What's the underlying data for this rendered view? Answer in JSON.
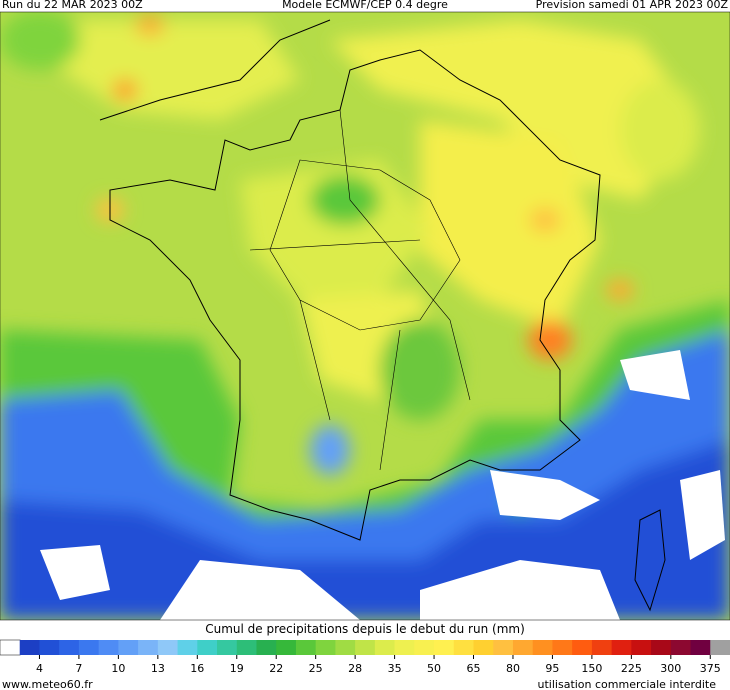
{
  "header": {
    "run": "Run du 22 MAR 2023 00Z",
    "model": "Modele ECMWF/CEP 0.4 degre",
    "forecast": "Prevision samedi 01 APR 2023 00Z"
  },
  "colorbar": {
    "title": "Cumul de precipitations depuis le debut du run (mm)",
    "labels": [
      "4",
      "7",
      "10",
      "13",
      "16",
      "19",
      "22",
      "25",
      "28",
      "35",
      "50",
      "65",
      "80",
      "95",
      "150",
      "225",
      "300",
      "375"
    ],
    "colors": [
      "#ffffff",
      "#1c3fc4",
      "#2150d6",
      "#2d64e6",
      "#3b78ef",
      "#4f8cf5",
      "#63a0f7",
      "#7ab4f8",
      "#8fc8f8",
      "#5fd0e8",
      "#3fcfc8",
      "#35c8a0",
      "#2dbe78",
      "#28b050",
      "#36b83a",
      "#5ac83a",
      "#7fd43e",
      "#a0dc44",
      "#c0e448",
      "#dcec4c",
      "#eef050",
      "#f8f050",
      "#fff050",
      "#ffe040",
      "#ffd030",
      "#ffc040",
      "#ffa830",
      "#ff9020",
      "#ff7818",
      "#ff5c10",
      "#f04010",
      "#e02010",
      "#c81010",
      "#a80818",
      "#8c0830",
      "#700040",
      "#a0a0a0"
    ]
  },
  "footer": {
    "site": "www.meteo60.fr",
    "notice": "utilisation commerciale interdite"
  }
}
